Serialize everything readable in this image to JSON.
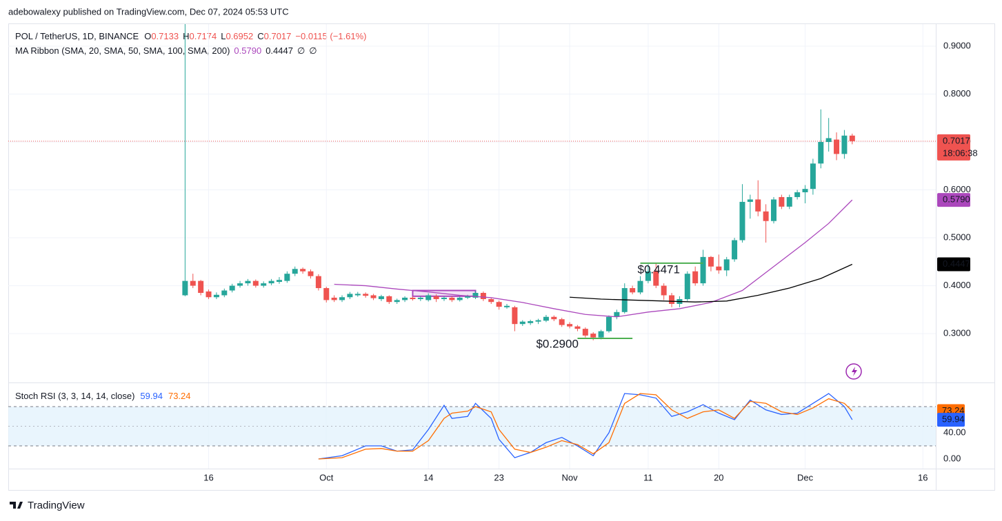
{
  "header": {
    "published": "adebowalexy published on TradingView.com, Dec 07, 2024 05:53 UTC",
    "symbol": "POL / TetherUS, 1D, BINANCE",
    "ohlc_labels": [
      "O",
      "H",
      "L",
      "C"
    ],
    "change": "−0.0115 (−1.61%)",
    "ma_title": "MA Ribbon (SMA, 20, SMA, 50, SMA, 100, SMA, 200)",
    "ma_nulls": [
      "∅",
      "∅"
    ],
    "stoch_title": "Stoch RSI (3, 3, 14, 14, close)",
    "countdown": "18:06:38"
  },
  "footer": {
    "brand": "TradingView"
  },
  "chart_data": [
    {
      "type": "candlestick",
      "up_color": "#26a69a",
      "down_color": "#ef5350",
      "grid": true,
      "x": [
        "2024-09-13",
        "2024-09-14",
        "2024-09-15",
        "2024-09-16",
        "2024-09-17",
        "2024-09-18",
        "2024-09-19",
        "2024-09-20",
        "2024-09-21",
        "2024-09-22",
        "2024-09-23",
        "2024-09-24",
        "2024-09-25",
        "2024-09-26",
        "2024-09-27",
        "2024-09-28",
        "2024-09-29",
        "2024-09-30",
        "2024-10-01",
        "2024-10-02",
        "2024-10-03",
        "2024-10-04",
        "2024-10-05",
        "2024-10-06",
        "2024-10-07",
        "2024-10-08",
        "2024-10-09",
        "2024-10-10",
        "2024-10-11",
        "2024-10-12",
        "2024-10-13",
        "2024-10-14",
        "2024-10-15",
        "2024-10-16",
        "2024-10-17",
        "2024-10-18",
        "2024-10-19",
        "2024-10-20",
        "2024-10-21",
        "2024-10-22",
        "2024-10-23",
        "2024-10-24",
        "2024-10-25",
        "2024-10-26",
        "2024-10-27",
        "2024-10-28",
        "2024-10-29",
        "2024-10-30",
        "2024-10-31",
        "2024-11-01",
        "2024-11-02",
        "2024-11-03",
        "2024-11-04",
        "2024-11-05",
        "2024-11-06",
        "2024-11-07",
        "2024-11-08",
        "2024-11-09",
        "2024-11-10",
        "2024-11-11",
        "2024-11-12",
        "2024-11-13",
        "2024-11-14",
        "2024-11-15",
        "2024-11-16",
        "2024-11-17",
        "2024-11-18",
        "2024-11-19",
        "2024-11-20",
        "2024-11-21",
        "2024-11-22",
        "2024-11-23",
        "2024-11-24",
        "2024-11-25",
        "2024-11-26",
        "2024-11-27",
        "2024-11-28",
        "2024-11-29",
        "2024-11-30",
        "2024-12-01",
        "2024-12-02",
        "2024-12-03",
        "2024-12-04",
        "2024-12-05",
        "2024-12-06",
        "2024-12-07"
      ],
      "open": [
        0.38,
        0.41,
        0.41,
        0.388,
        0.376,
        0.38,
        0.39,
        0.4,
        0.405,
        0.41,
        0.4,
        0.405,
        0.408,
        0.41,
        0.425,
        0.435,
        0.43,
        0.42,
        0.395,
        0.375,
        0.37,
        0.376,
        0.38,
        0.383,
        0.38,
        0.372,
        0.378,
        0.366,
        0.37,
        0.375,
        0.372,
        0.37,
        0.378,
        0.372,
        0.375,
        0.37,
        0.375,
        0.375,
        0.385,
        0.372,
        0.366,
        0.355,
        0.355,
        0.32,
        0.322,
        0.325,
        0.327,
        0.335,
        0.33,
        0.32,
        0.315,
        0.31,
        0.3,
        0.292,
        0.305,
        0.335,
        0.345,
        0.395,
        0.386,
        0.41,
        0.43,
        0.4,
        0.38,
        0.362,
        0.372,
        0.43,
        0.405,
        0.46,
        0.44,
        0.432,
        0.455,
        0.495,
        0.575,
        0.58,
        0.555,
        0.535,
        0.585,
        0.565,
        0.585,
        0.595,
        0.602,
        0.655,
        0.7,
        0.705,
        0.675,
        0.7133
      ],
      "high": [
        0.946,
        0.425,
        0.412,
        0.392,
        0.386,
        0.394,
        0.404,
        0.41,
        0.414,
        0.413,
        0.409,
        0.414,
        0.418,
        0.43,
        0.44,
        0.438,
        0.434,
        0.424,
        0.398,
        0.38,
        0.38,
        0.387,
        0.387,
        0.386,
        0.383,
        0.381,
        0.38,
        0.373,
        0.378,
        0.378,
        0.378,
        0.384,
        0.382,
        0.378,
        0.378,
        0.378,
        0.381,
        0.389,
        0.388,
        0.375,
        0.369,
        0.362,
        0.358,
        0.328,
        0.329,
        0.331,
        0.339,
        0.338,
        0.333,
        0.324,
        0.318,
        0.313,
        0.303,
        0.308,
        0.338,
        0.35,
        0.405,
        0.4,
        0.42,
        0.445,
        0.447,
        0.405,
        0.385,
        0.378,
        0.43,
        0.44,
        0.475,
        0.462,
        0.465,
        0.46,
        0.5,
        0.612,
        0.59,
        0.62,
        0.57,
        0.585,
        0.59,
        0.59,
        0.6,
        0.61,
        0.665,
        0.768,
        0.75,
        0.72,
        0.725,
        0.7174
      ],
      "low": [
        0.378,
        0.395,
        0.38,
        0.372,
        0.372,
        0.376,
        0.386,
        0.396,
        0.4,
        0.396,
        0.396,
        0.401,
        0.404,
        0.406,
        0.42,
        0.425,
        0.415,
        0.39,
        0.365,
        0.366,
        0.366,
        0.372,
        0.377,
        0.375,
        0.37,
        0.368,
        0.362,
        0.362,
        0.366,
        0.369,
        0.368,
        0.367,
        0.366,
        0.368,
        0.366,
        0.367,
        0.372,
        0.372,
        0.368,
        0.362,
        0.35,
        0.352,
        0.305,
        0.316,
        0.318,
        0.32,
        0.324,
        0.326,
        0.314,
        0.311,
        0.305,
        0.292,
        0.286,
        0.288,
        0.302,
        0.33,
        0.342,
        0.382,
        0.382,
        0.405,
        0.395,
        0.37,
        0.355,
        0.355,
        0.368,
        0.4,
        0.4,
        0.43,
        0.425,
        0.42,
        0.45,
        0.49,
        0.54,
        0.545,
        0.49,
        0.53,
        0.56,
        0.56,
        0.58,
        0.572,
        0.59,
        0.645,
        0.68,
        0.662,
        0.665,
        0.6952
      ],
      "close": [
        0.41,
        0.4,
        0.385,
        0.376,
        0.381,
        0.39,
        0.4,
        0.405,
        0.41,
        0.4,
        0.405,
        0.41,
        0.412,
        0.425,
        0.435,
        0.43,
        0.42,
        0.395,
        0.37,
        0.37,
        0.376,
        0.383,
        0.383,
        0.379,
        0.374,
        0.378,
        0.366,
        0.37,
        0.375,
        0.372,
        0.375,
        0.38,
        0.372,
        0.375,
        0.37,
        0.375,
        0.378,
        0.385,
        0.372,
        0.366,
        0.356,
        0.358,
        0.32,
        0.325,
        0.326,
        0.328,
        0.335,
        0.33,
        0.318,
        0.315,
        0.31,
        0.296,
        0.292,
        0.305,
        0.335,
        0.345,
        0.395,
        0.386,
        0.41,
        0.43,
        0.4,
        0.38,
        0.362,
        0.372,
        0.425,
        0.405,
        0.46,
        0.44,
        0.432,
        0.455,
        0.495,
        0.575,
        0.58,
        0.555,
        0.535,
        0.58,
        0.565,
        0.585,
        0.595,
        0.602,
        0.655,
        0.7,
        0.708,
        0.675,
        0.7133,
        0.7017
      ],
      "price_line_color": "#ef5350",
      "series": [
        {
          "name": "SMA 20",
          "color": "#ab47bc",
          "last_label": "0.5790",
          "x": [
            "2024-10-02",
            "2024-10-06",
            "2024-10-10",
            "2024-10-14",
            "2024-10-18",
            "2024-10-22",
            "2024-10-26",
            "2024-10-30",
            "2024-11-03",
            "2024-11-07",
            "2024-11-11",
            "2024-11-15",
            "2024-11-19",
            "2024-11-23",
            "2024-11-27",
            "2024-12-01",
            "2024-12-04",
            "2024-12-07"
          ],
          "values": [
            0.403,
            0.4,
            0.393,
            0.387,
            0.38,
            0.375,
            0.365,
            0.352,
            0.34,
            0.335,
            0.345,
            0.352,
            0.365,
            0.39,
            0.44,
            0.49,
            0.53,
            0.579
          ]
        },
        {
          "name": "SMA 50",
          "color": "#000000",
          "x": [
            "2024-11-01",
            "2024-11-05",
            "2024-11-09",
            "2024-11-13",
            "2024-11-17",
            "2024-11-21",
            "2024-11-25",
            "2024-11-29",
            "2024-12-03",
            "2024-12-07"
          ],
          "values": [
            0.376,
            0.372,
            0.37,
            0.368,
            0.366,
            0.368,
            0.38,
            0.395,
            0.415,
            0.4447
          ]
        }
      ],
      "annotations": [
        {
          "text": "$0.4471",
          "price": 0.4471,
          "x": [
            "2024-11-10",
            "2024-11-18"
          ],
          "color": "#4caf50"
        },
        {
          "text": "$0.2900",
          "price": 0.29,
          "x": [
            "2024-11-02",
            "2024-11-09"
          ],
          "color": "#4caf50"
        }
      ],
      "boxes": [
        {
          "x": [
            "2024-10-12",
            "2024-10-20"
          ],
          "y": [
            0.378,
            0.39
          ],
          "color": "#ab47bc"
        }
      ],
      "xlim": [
        "2024-08-22",
        "2024-12-18"
      ],
      "xticks": [
        {
          "value": "2024-09-16",
          "label": "16"
        },
        {
          "value": "2024-10-01",
          "label": "Oct"
        },
        {
          "value": "2024-10-14",
          "label": "14"
        },
        {
          "value": "2024-10-23",
          "label": "23"
        },
        {
          "value": "2024-11-01",
          "label": "Nov"
        },
        {
          "value": "2024-11-11",
          "label": "11"
        },
        {
          "value": "2024-11-20",
          "label": "20"
        },
        {
          "value": "2024-12-01",
          "label": "Dec"
        },
        {
          "value": "2024-12-16",
          "label": "16"
        }
      ],
      "ylim": [
        0.198,
        0.946
      ],
      "yticks": [
        {
          "value": 0.3,
          "label": "0.3000"
        },
        {
          "value": 0.4,
          "label": "0.4000"
        },
        {
          "value": 0.5,
          "label": "0.5000"
        },
        {
          "value": 0.6,
          "label": "0.6000"
        },
        {
          "value": 0.7,
          "label": "0.7000"
        },
        {
          "value": 0.8,
          "label": "0.8000"
        },
        {
          "value": 0.9,
          "label": "0.9000"
        }
      ]
    },
    {
      "type": "line",
      "band": [
        20,
        80
      ],
      "band_color": "#e3f2fd",
      "midline": 50,
      "x": [
        "2024-09-30",
        "2024-10-03",
        "2024-10-06",
        "2024-10-08",
        "2024-10-10",
        "2024-10-12",
        "2024-10-14",
        "2024-10-16",
        "2024-10-17",
        "2024-10-19",
        "2024-10-20",
        "2024-10-22",
        "2024-10-23",
        "2024-10-25",
        "2024-10-27",
        "2024-10-29",
        "2024-10-31",
        "2024-11-02",
        "2024-11-04",
        "2024-11-06",
        "2024-11-08",
        "2024-11-10",
        "2024-11-12",
        "2024-11-14",
        "2024-11-16",
        "2024-11-18",
        "2024-11-20",
        "2024-11-22",
        "2024-11-24",
        "2024-11-26",
        "2024-11-28",
        "2024-11-30",
        "2024-12-02",
        "2024-12-04",
        "2024-12-06",
        "2024-12-07"
      ],
      "series": [
        {
          "name": "K",
          "color": "#2962ff",
          "values": [
            0,
            5,
            20,
            20,
            12,
            14,
            45,
            82,
            62,
            65,
            85,
            62,
            30,
            2,
            10,
            25,
            33,
            20,
            5,
            40,
            100,
            98,
            93,
            65,
            72,
            83,
            70,
            60,
            90,
            75,
            68,
            70,
            85,
            100,
            80,
            59.94
          ]
        },
        {
          "name": "D",
          "color": "#ff6d00",
          "values": [
            0,
            2,
            15,
            16,
            12,
            12,
            28,
            62,
            70,
            73,
            80,
            72,
            45,
            15,
            10,
            18,
            28,
            22,
            8,
            25,
            85,
            100,
            98,
            75,
            62,
            72,
            75,
            62,
            88,
            85,
            72,
            68,
            78,
            92,
            85,
            73.24
          ]
        }
      ],
      "xlim": [
        "2024-08-22",
        "2024-12-18"
      ],
      "ylim": [
        -14.7,
        115.8
      ],
      "yticks": [
        {
          "value": 0,
          "label": "0.00"
        },
        {
          "value": 40,
          "label": "40.00"
        }
      ]
    }
  ]
}
